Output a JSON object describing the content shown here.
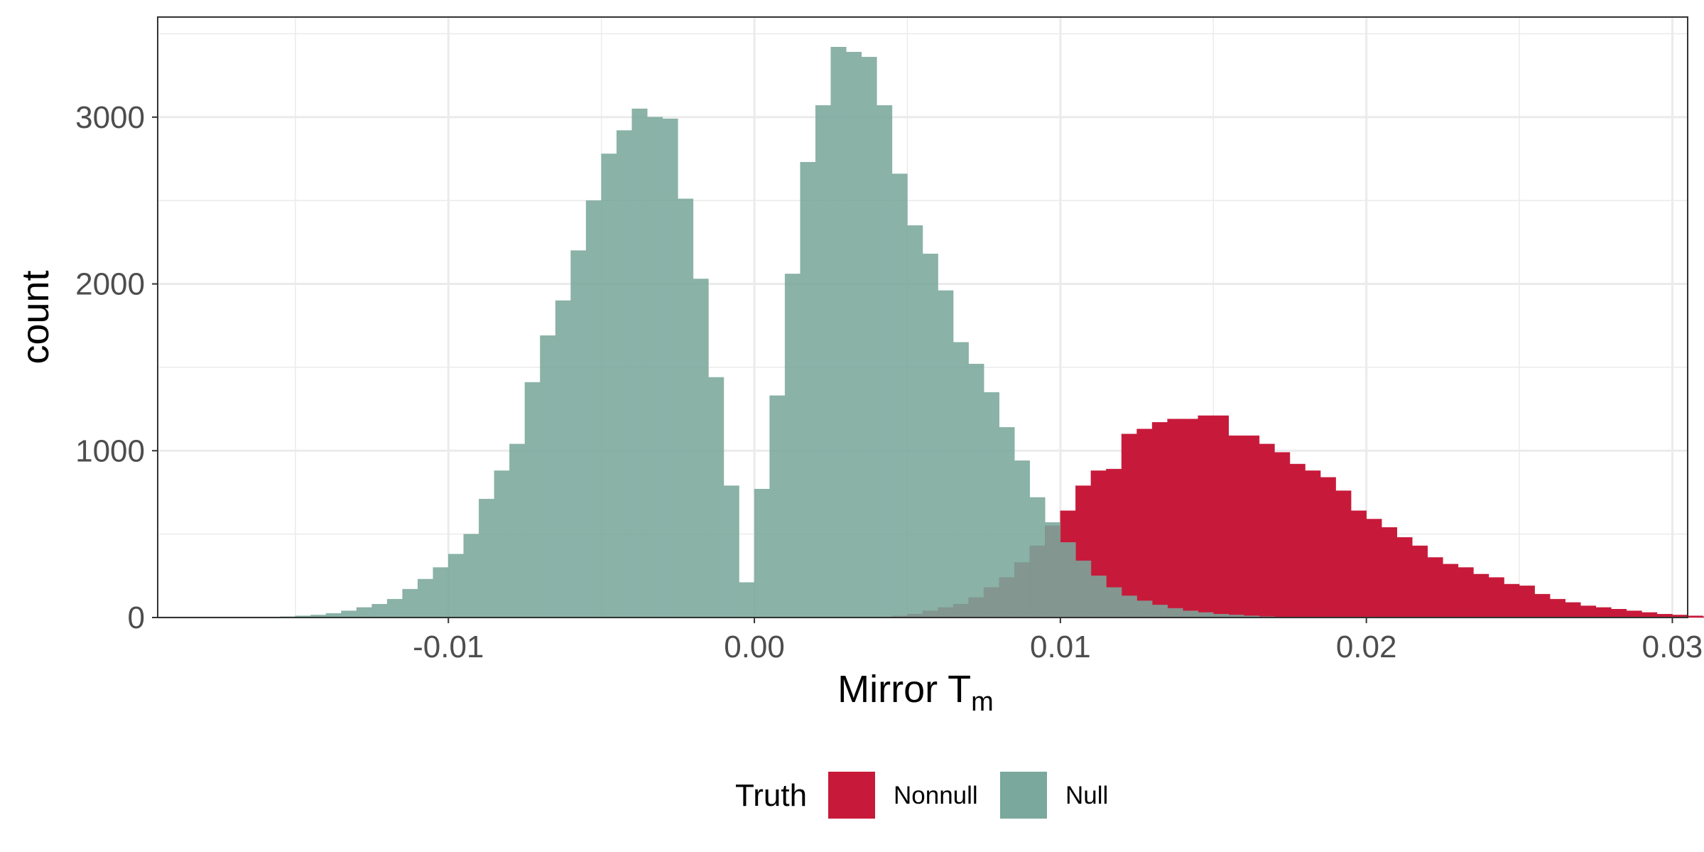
{
  "chart_data": {
    "type": "histogram",
    "xlabel": "Mirror T",
    "xlabel_subscript": "m",
    "ylabel": "count",
    "xlim": [
      -0.0195,
      0.0305
    ],
    "ylim": [
      0,
      3600
    ],
    "x_ticks": [
      -0.01,
      0.0,
      0.01,
      0.02,
      0.03
    ],
    "x_tick_labels": [
      "-0.01",
      "0.00",
      "0.01",
      "0.02",
      "0.03"
    ],
    "y_ticks": [
      0,
      1000,
      2000,
      3000
    ],
    "y_tick_labels": [
      "0",
      "1000",
      "2000",
      "3000"
    ],
    "grid": true,
    "legend_position": "bottom",
    "legend_title": "Truth",
    "bin_width": 0.0005,
    "series": [
      {
        "name": "Null",
        "color": "#7aa89c",
        "bin_start": -0.0155,
        "counts": [
          5,
          10,
          15,
          25,
          40,
          60,
          80,
          110,
          170,
          230,
          300,
          380,
          500,
          710,
          880,
          1040,
          1410,
          1690,
          1900,
          2200,
          2500,
          2780,
          2920,
          3050,
          3000,
          2990,
          2510,
          2030,
          1440,
          790,
          210,
          770,
          1330,
          2060,
          2730,
          3070,
          3420,
          3390,
          3360,
          3070,
          2660,
          2350,
          2180,
          1960,
          1650,
          1520,
          1350,
          1140,
          940,
          720,
          570,
          450,
          340,
          250,
          180,
          130,
          100,
          75,
          55,
          40,
          30,
          20,
          15,
          10,
          5,
          3
        ]
      },
      {
        "name": "Nonnull",
        "color": "#c71a3a",
        "bin_start": 0.0045,
        "counts": [
          10,
          20,
          40,
          60,
          80,
          120,
          180,
          240,
          330,
          430,
          550,
          640,
          790,
          880,
          890,
          1100,
          1130,
          1170,
          1190,
          1190,
          1210,
          1210,
          1090,
          1090,
          1040,
          990,
          920,
          880,
          840,
          760,
          640,
          590,
          540,
          480,
          430,
          360,
          320,
          300,
          260,
          240,
          200,
          190,
          140,
          110,
          90,
          70,
          60,
          50,
          40,
          30,
          20,
          15,
          10,
          5
        ]
      }
    ]
  }
}
